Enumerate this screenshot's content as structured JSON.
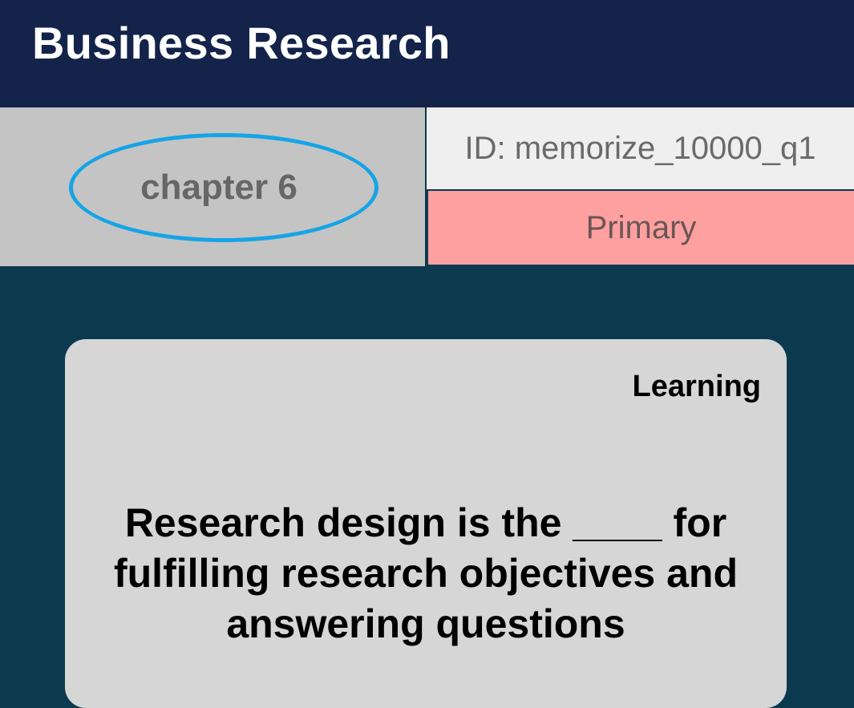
{
  "app_bar": {
    "title": "Business Research"
  },
  "info": {
    "chapter": "chapter 6",
    "id_text": "ID: memorize_10000_q1",
    "category": "Primary"
  },
  "card": {
    "status": "Learning",
    "question": "Research design is the ____ for fulfilling research objectives and answering questions"
  },
  "colors": {
    "app_bar_bg": "#14234a",
    "page_bg": "#0b3a4f",
    "chapter_highlight": "#15a4e6",
    "primary_bg": "#ffa0a0",
    "card_bg": "#d6d6d6"
  }
}
